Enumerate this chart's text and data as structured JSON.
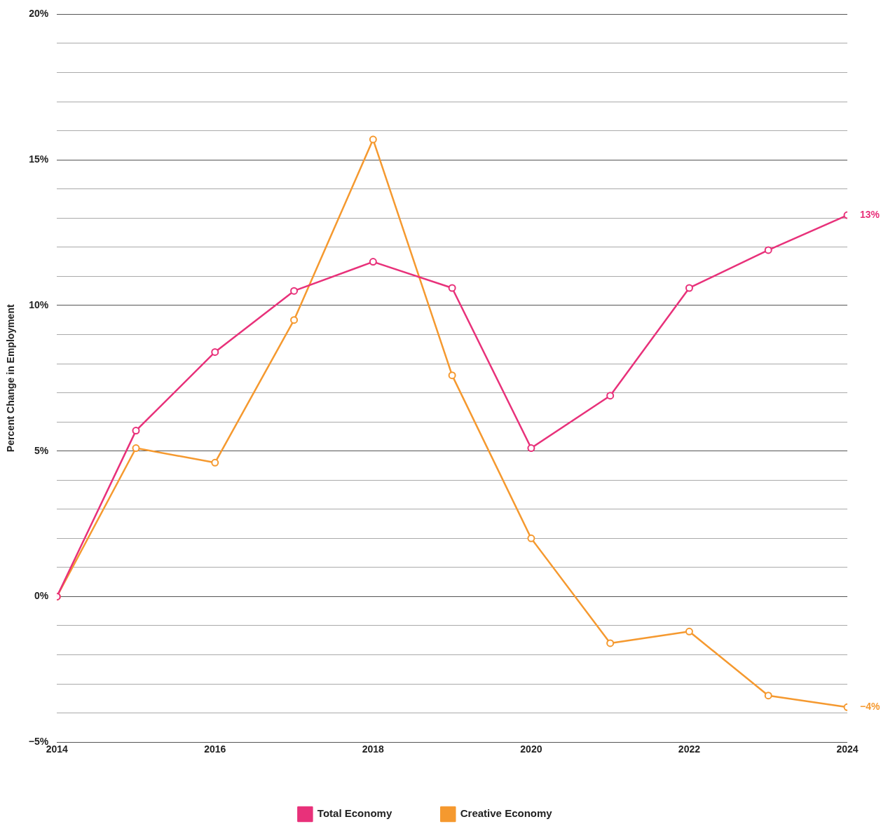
{
  "chart_data": {
    "type": "line",
    "ylabel": "Percent Change in Employment",
    "x": [
      2014,
      2015,
      2016,
      2017,
      2018,
      2019,
      2020,
      2021,
      2022,
      2023,
      2024
    ],
    "xlim": [
      2014,
      2024
    ],
    "xticks": [
      2014,
      2016,
      2018,
      2020,
      2022,
      2024
    ],
    "ylim": [
      -5,
      20
    ],
    "yticks": [
      {
        "value": -5,
        "label": "−5%"
      },
      {
        "value": -4,
        "label": null
      },
      {
        "value": -3,
        "label": null
      },
      {
        "value": -2,
        "label": null
      },
      {
        "value": -1,
        "label": null
      },
      {
        "value": 0,
        "label": "0%"
      },
      {
        "value": 1,
        "label": null
      },
      {
        "value": 2,
        "label": null
      },
      {
        "value": 3,
        "label": null
      },
      {
        "value": 4,
        "label": null
      },
      {
        "value": 5,
        "label": "5%"
      },
      {
        "value": 6,
        "label": null
      },
      {
        "value": 7,
        "label": null
      },
      {
        "value": 8,
        "label": null
      },
      {
        "value": 9,
        "label": null
      },
      {
        "value": 10,
        "label": "10%"
      },
      {
        "value": 11,
        "label": null
      },
      {
        "value": 12,
        "label": null
      },
      {
        "value": 13,
        "label": null
      },
      {
        "value": 14,
        "label": null
      },
      {
        "value": 15,
        "label": "15%"
      },
      {
        "value": 16,
        "label": null
      },
      {
        "value": 17,
        "label": null
      },
      {
        "value": 18,
        "label": null
      },
      {
        "value": 19,
        "label": null
      },
      {
        "value": 20,
        "label": "20%"
      }
    ],
    "series": [
      {
        "name": "Total Economy",
        "color": "#e8317a",
        "values": [
          0,
          5.7,
          8.4,
          10.5,
          11.5,
          10.6,
          5.1,
          6.9,
          10.6,
          11.9,
          13.1
        ]
      },
      {
        "name": "Creative Economy",
        "color": "#f5992f",
        "values": [
          0,
          5.1,
          4.6,
          9.5,
          15.7,
          7.6,
          2.0,
          -1.6,
          -1.2,
          -3.4,
          -3.8
        ]
      }
    ],
    "annotations": [
      {
        "text": "13%",
        "x": 2024,
        "y": 13.1
      },
      {
        "text": "−4%",
        "x": 2024,
        "y": -3.8
      }
    ],
    "grid": "y",
    "legend": "bottom",
    "marker": "circle",
    "line_style": "solid"
  }
}
